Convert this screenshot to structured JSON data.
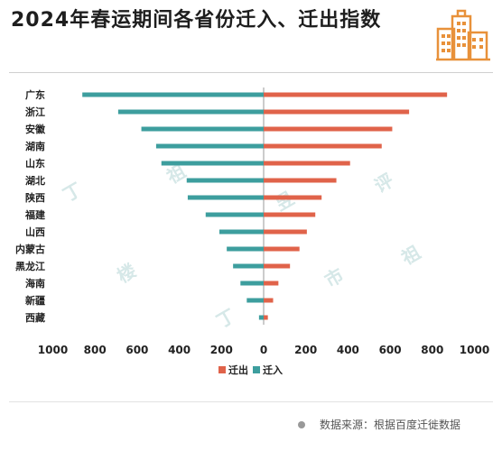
{
  "header": {
    "title": "2024年春运期间各省份迁入、迁出指数"
  },
  "icons": {
    "logo": "city-buildings-icon"
  },
  "colors": {
    "out": "#e0634a",
    "in": "#3d9e9e",
    "logo": "#e8913a"
  },
  "source": {
    "text": "数据来源：根据百度迁徙数据"
  },
  "watermark": [
    "丁",
    "祖",
    "昱",
    "评",
    "楼",
    "市"
  ],
  "chart_data": {
    "type": "bar",
    "orientation": "horizontal-butterfly",
    "categories": [
      "广东",
      "浙江",
      "安徽",
      "湖南",
      "山东",
      "湖北",
      "陕西",
      "福建",
      "山西",
      "内蒙古",
      "黑龙江",
      "海南",
      "新疆",
      "西藏"
    ],
    "series": [
      {
        "name": "迁出",
        "side": "right",
        "values": [
          870,
          690,
          610,
          560,
          410,
          345,
          275,
          245,
          205,
          170,
          125,
          70,
          45,
          20
        ]
      },
      {
        "name": "迁入",
        "side": "left",
        "values": [
          860,
          690,
          580,
          510,
          485,
          365,
          360,
          275,
          210,
          175,
          145,
          110,
          80,
          22
        ]
      }
    ],
    "xlim": [
      -1000,
      1000
    ],
    "x_ticks": [
      -1000,
      -800,
      -600,
      -400,
      -200,
      0,
      200,
      400,
      600,
      800,
      1000
    ],
    "x_tick_labels": [
      "1000",
      "800",
      "600",
      "400",
      "200",
      "0",
      "200",
      "400",
      "600",
      "800",
      "1000"
    ],
    "legend": {
      "position": "bottom-center",
      "items": [
        "迁出",
        "迁入"
      ]
    },
    "grid": false
  }
}
